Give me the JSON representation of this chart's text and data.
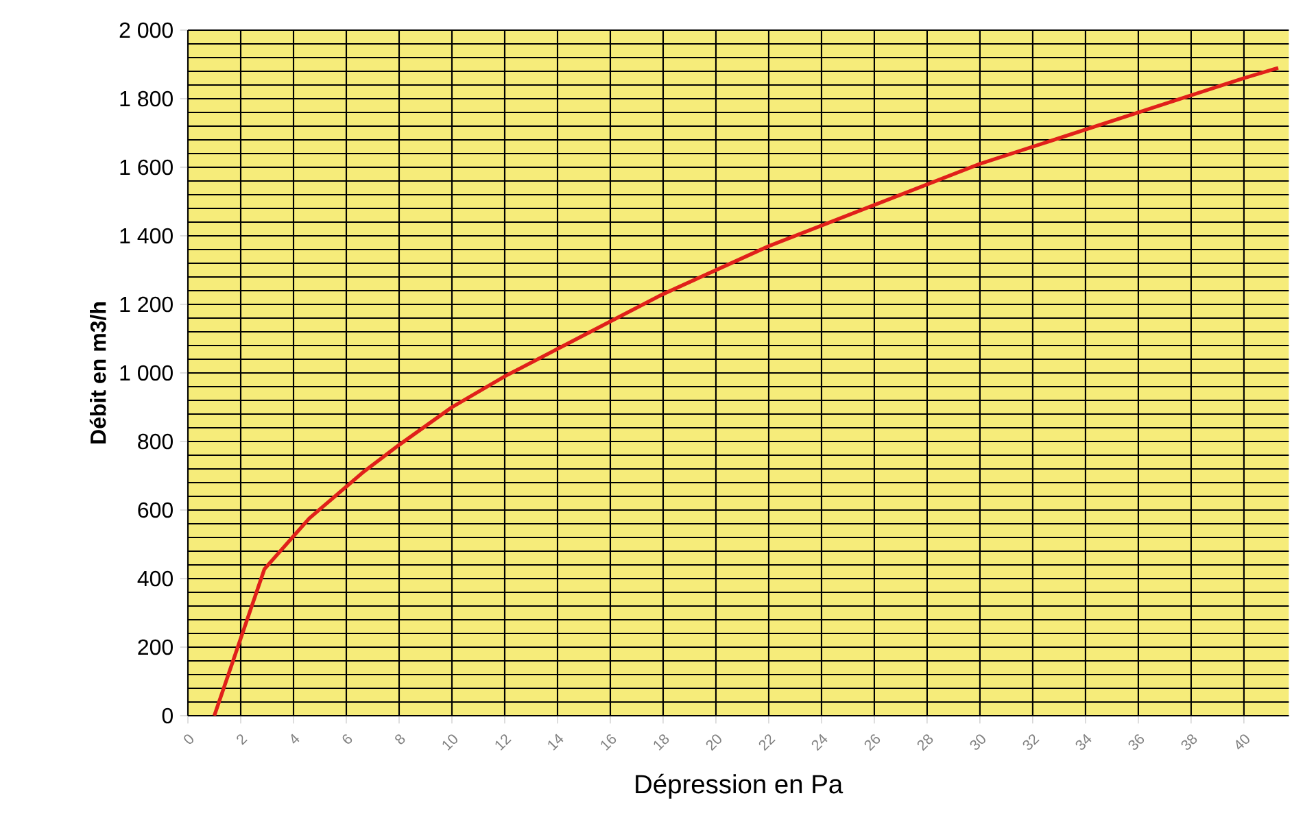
{
  "chart_data": {
    "type": "line",
    "xlabel": "Dépression en Pa",
    "ylabel": "Débit en m3/h",
    "x": [
      1,
      2.9,
      4.6,
      6.6,
      8,
      10,
      12,
      14,
      16,
      18,
      20,
      22,
      24,
      26,
      28,
      30,
      32,
      34,
      36,
      38,
      40,
      41.3
    ],
    "series": [
      {
        "color": "#e0201a",
        "values": [
          0,
          428,
          576,
          708,
          790,
          900,
          990,
          1070,
          1150,
          1230,
          1300,
          1370,
          1430,
          1490,
          1550,
          1610,
          1660,
          1710,
          1760,
          1810,
          1860,
          1890
        ]
      }
    ],
    "xlim": [
      0,
      41.7
    ],
    "ylim": [
      0,
      2000
    ],
    "xticks": [
      0,
      2,
      4,
      6,
      8,
      10,
      12,
      14,
      16,
      18,
      20,
      22,
      24,
      26,
      28,
      30,
      32,
      34,
      36,
      38,
      40
    ],
    "yticks": [
      0,
      200,
      400,
      600,
      800,
      {
        "value": 1000,
        "label": "1 000"
      },
      {
        "value": 1200,
        "label": "1 200"
      },
      {
        "value": 1400,
        "label": "1 400"
      },
      {
        "value": 1600,
        "label": "1 600"
      },
      {
        "value": 1800,
        "label": "1 800"
      },
      {
        "value": 2000,
        "label": "2 000"
      }
    ],
    "grid": true,
    "marker": "none",
    "line_style": "solid"
  }
}
